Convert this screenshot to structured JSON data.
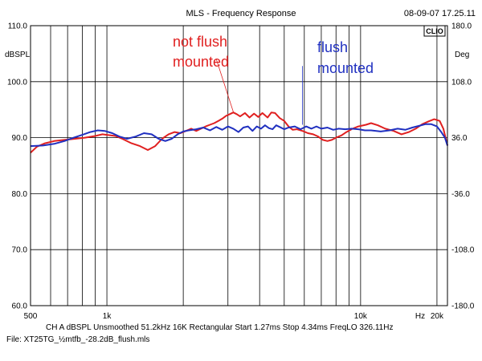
{
  "header": {
    "title": "MLS - Frequency Response",
    "timestamp": "08-09-07 17.25.11",
    "logo_text": "CLIO"
  },
  "footer": {
    "info_line": "CH A   dBSPL   Unsmoothed   51.2kHz   16K   Rectangular   Start 1.27ms   Stop 4.34ms   FreqLO 326.11Hz",
    "file_line": "File: XT25TG_½mtfb_-28.2dB_flush.mls"
  },
  "chart_data": {
    "type": "line",
    "xscale": "log",
    "xlim": [
      500,
      22000
    ],
    "ylim": [
      60,
      110
    ],
    "y2lim": [
      -180,
      180
    ],
    "grid": true,
    "ylabel": "dBSPL",
    "y2label": "Deg",
    "xunit_label": "Hz",
    "x_tick_labels": [
      {
        "value": 500,
        "label": "500"
      },
      {
        "value": 1000,
        "label": "1k"
      },
      {
        "value": 10000,
        "label": "10k"
      },
      {
        "value": 20000,
        "label": "20k"
      }
    ],
    "x_grid_values": [
      500,
      600,
      700,
      800,
      900,
      1000,
      2000,
      3000,
      4000,
      5000,
      6000,
      7000,
      8000,
      9000,
      10000,
      20000
    ],
    "y_ticks": [
      {
        "value": 110,
        "label": "110.0"
      },
      {
        "value": 100,
        "label": "100.0"
      },
      {
        "value": 90,
        "label": "90.0"
      },
      {
        "value": 80,
        "label": "80.0"
      },
      {
        "value": 70,
        "label": "70.0"
      },
      {
        "value": 60,
        "label": "60.0"
      }
    ],
    "y2_ticks": [
      {
        "value": 180,
        "label": "180.0"
      },
      {
        "value": 108,
        "label": "108.0"
      },
      {
        "value": 36,
        "label": "36.0"
      },
      {
        "value": -36,
        "label": "-36.0"
      },
      {
        "value": -108,
        "label": "-108.0"
      },
      {
        "value": -180,
        "label": "-180.0"
      }
    ],
    "series": [
      {
        "name": "not flush mounted",
        "color": "#e02020",
        "points": [
          [
            500,
            87.3
          ],
          [
            530,
            88.4
          ],
          [
            570,
            89.0
          ],
          [
            620,
            89.4
          ],
          [
            680,
            89.6
          ],
          [
            750,
            89.8
          ],
          [
            820,
            90.0
          ],
          [
            900,
            90.3
          ],
          [
            960,
            90.6
          ],
          [
            1000,
            90.5
          ],
          [
            1080,
            90.3
          ],
          [
            1150,
            89.8
          ],
          [
            1250,
            89.0
          ],
          [
            1350,
            88.5
          ],
          [
            1450,
            87.8
          ],
          [
            1550,
            88.5
          ],
          [
            1650,
            89.8
          ],
          [
            1750,
            90.6
          ],
          [
            1850,
            91.0
          ],
          [
            1950,
            90.8
          ],
          [
            2050,
            91.2
          ],
          [
            2150,
            91.6
          ],
          [
            2250,
            91.2
          ],
          [
            2350,
            91.6
          ],
          [
            2450,
            92.0
          ],
          [
            2550,
            92.3
          ],
          [
            2650,
            92.6
          ],
          [
            2750,
            93.0
          ],
          [
            2850,
            93.4
          ],
          [
            2950,
            93.9
          ],
          [
            3050,
            94.2
          ],
          [
            3150,
            94.5
          ],
          [
            3250,
            94.2
          ],
          [
            3350,
            93.8
          ],
          [
            3500,
            94.4
          ],
          [
            3650,
            93.6
          ],
          [
            3800,
            94.3
          ],
          [
            3950,
            93.7
          ],
          [
            4100,
            94.4
          ],
          [
            4300,
            93.6
          ],
          [
            4450,
            94.5
          ],
          [
            4600,
            94.4
          ],
          [
            4800,
            93.5
          ],
          [
            5000,
            93.0
          ],
          [
            5200,
            92.0
          ],
          [
            5400,
            91.4
          ],
          [
            5600,
            91.5
          ],
          [
            5900,
            91.2
          ],
          [
            6200,
            90.8
          ],
          [
            6500,
            90.6
          ],
          [
            6800,
            90.2
          ],
          [
            7100,
            89.6
          ],
          [
            7400,
            89.4
          ],
          [
            7700,
            89.6
          ],
          [
            8000,
            90.0
          ],
          [
            8400,
            90.4
          ],
          [
            8800,
            91.0
          ],
          [
            9300,
            91.6
          ],
          [
            9800,
            92.0
          ],
          [
            10500,
            92.3
          ],
          [
            11000,
            92.6
          ],
          [
            11700,
            92.2
          ],
          [
            12500,
            91.6
          ],
          [
            13500,
            91.2
          ],
          [
            14500,
            90.6
          ],
          [
            15500,
            91.0
          ],
          [
            16500,
            91.6
          ],
          [
            17500,
            92.4
          ],
          [
            18500,
            92.9
          ],
          [
            19500,
            93.3
          ],
          [
            20500,
            93.0
          ],
          [
            21200,
            91.6
          ],
          [
            22000,
            88.6
          ]
        ]
      },
      {
        "name": "flush mounted",
        "color": "#2030c0",
        "points": [
          [
            500,
            88.5
          ],
          [
            560,
            88.6
          ],
          [
            620,
            88.9
          ],
          [
            680,
            89.4
          ],
          [
            740,
            90.0
          ],
          [
            800,
            90.5
          ],
          [
            860,
            91.0
          ],
          [
            920,
            91.3
          ],
          [
            980,
            91.2
          ],
          [
            1050,
            90.8
          ],
          [
            1120,
            90.2
          ],
          [
            1200,
            89.8
          ],
          [
            1300,
            90.2
          ],
          [
            1400,
            90.8
          ],
          [
            1500,
            90.6
          ],
          [
            1600,
            89.8
          ],
          [
            1700,
            89.4
          ],
          [
            1800,
            89.8
          ],
          [
            1900,
            90.6
          ],
          [
            2000,
            91.1
          ],
          [
            2100,
            91.3
          ],
          [
            2250,
            91.5
          ],
          [
            2400,
            91.8
          ],
          [
            2550,
            91.3
          ],
          [
            2700,
            91.9
          ],
          [
            2850,
            91.4
          ],
          [
            3000,
            92.0
          ],
          [
            3150,
            91.6
          ],
          [
            3300,
            91.0
          ],
          [
            3450,
            91.8
          ],
          [
            3600,
            92.0
          ],
          [
            3750,
            91.2
          ],
          [
            3900,
            92.0
          ],
          [
            4050,
            91.6
          ],
          [
            4200,
            92.2
          ],
          [
            4350,
            91.7
          ],
          [
            4500,
            91.5
          ],
          [
            4650,
            92.2
          ],
          [
            4800,
            91.9
          ],
          [
            5000,
            91.5
          ],
          [
            5200,
            91.8
          ],
          [
            5500,
            92.0
          ],
          [
            5800,
            91.5
          ],
          [
            6100,
            92.0
          ],
          [
            6400,
            91.6
          ],
          [
            6700,
            92.0
          ],
          [
            7000,
            91.6
          ],
          [
            7400,
            91.8
          ],
          [
            7800,
            91.4
          ],
          [
            8200,
            91.6
          ],
          [
            8700,
            91.5
          ],
          [
            9200,
            91.6
          ],
          [
            9800,
            91.5
          ],
          [
            10400,
            91.3
          ],
          [
            11000,
            91.3
          ],
          [
            12000,
            91.1
          ],
          [
            13000,
            91.3
          ],
          [
            14000,
            91.6
          ],
          [
            15000,
            91.4
          ],
          [
            16000,
            91.8
          ],
          [
            17000,
            92.1
          ],
          [
            18000,
            92.4
          ],
          [
            19000,
            92.4
          ],
          [
            20000,
            92.0
          ],
          [
            20800,
            91.0
          ],
          [
            21500,
            90.0
          ],
          [
            22000,
            88.6
          ]
        ]
      }
    ],
    "annotations": [
      {
        "text": "not flush",
        "color": "#e02020"
      },
      {
        "text": "mounted",
        "color": "#e02020"
      },
      {
        "text": "flush",
        "color": "#2030c0"
      },
      {
        "text": "mounted",
        "color": "#2030c0"
      }
    ],
    "callouts": [
      {
        "series": 0,
        "from_freq": 2700,
        "from_db": 104.0,
        "to_freq": 3150,
        "to_db": 94.6
      },
      {
        "series": 1,
        "from_freq": 5900,
        "from_db": 102.8,
        "to_freq": 5900,
        "to_db": 92.3
      }
    ]
  }
}
